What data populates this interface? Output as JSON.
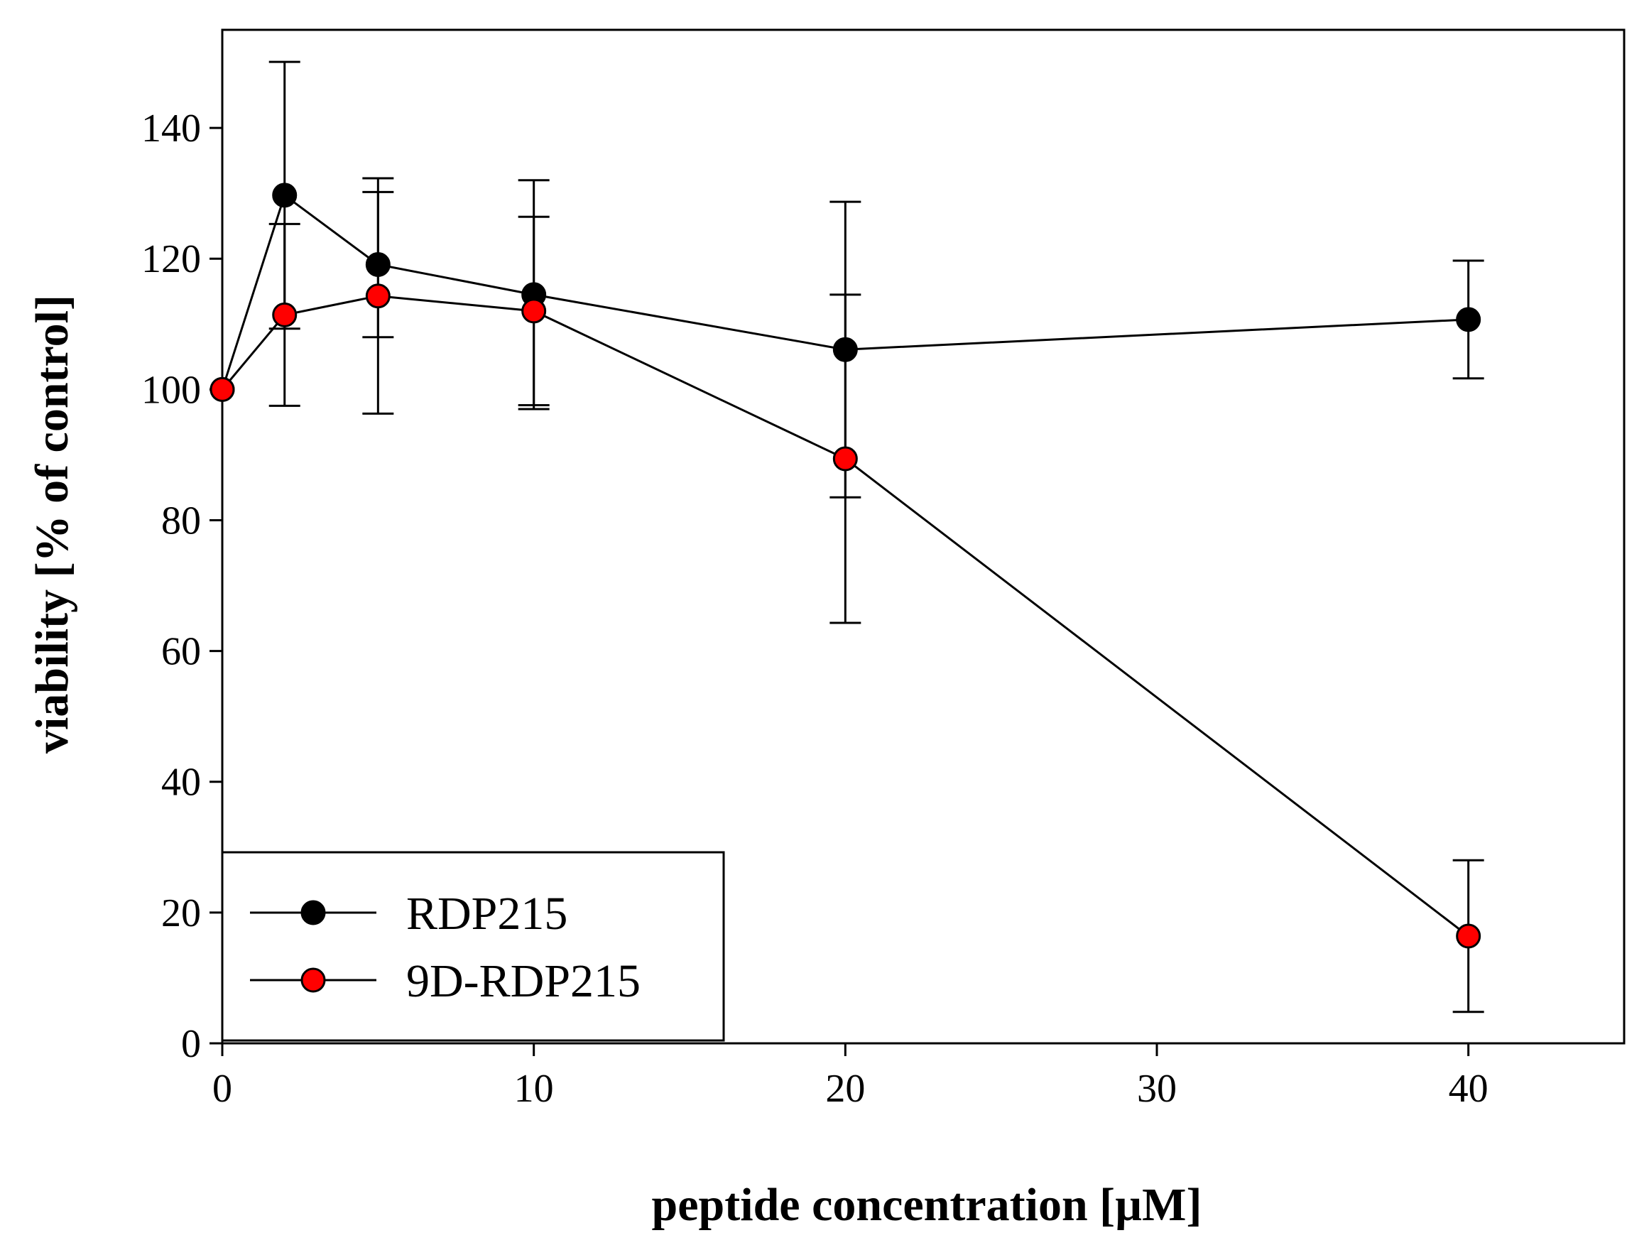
{
  "chart_data": {
    "type": "line",
    "title": "",
    "xlabel": "peptide concentration [µM]",
    "ylabel": "viability [% of control]",
    "xlim": [
      0,
      45
    ],
    "ylim": [
      0,
      155
    ],
    "xticks": [
      0,
      10,
      20,
      30,
      40
    ],
    "yticks": [
      0,
      20,
      40,
      60,
      80,
      100,
      120,
      140
    ],
    "xtick_labels": [
      "0",
      "10",
      "20",
      "30",
      "40"
    ],
    "ytick_labels": [
      "0",
      "20",
      "40",
      "60",
      "80",
      "100",
      "120",
      "140"
    ],
    "grid": false,
    "legend_position": "bottom-left",
    "series": [
      {
        "name": "RDP215",
        "marker_color": "#000000",
        "x": [
          0,
          2,
          5,
          10,
          20,
          40
        ],
        "y": [
          100,
          129.7,
          119.1,
          114.5,
          106.1,
          110.7
        ],
        "err": [
          0,
          20.4,
          11.1,
          17.5,
          22.6,
          9.0
        ]
      },
      {
        "name": "9D-RDP215",
        "marker_color": "#ff0000",
        "x": [
          0,
          2,
          5,
          10,
          20,
          40
        ],
        "y": [
          100,
          111.4,
          114.3,
          112.0,
          89.4,
          16.4
        ],
        "err": [
          0,
          13.9,
          18.0,
          14.4,
          25.1,
          11.6
        ]
      }
    ]
  }
}
